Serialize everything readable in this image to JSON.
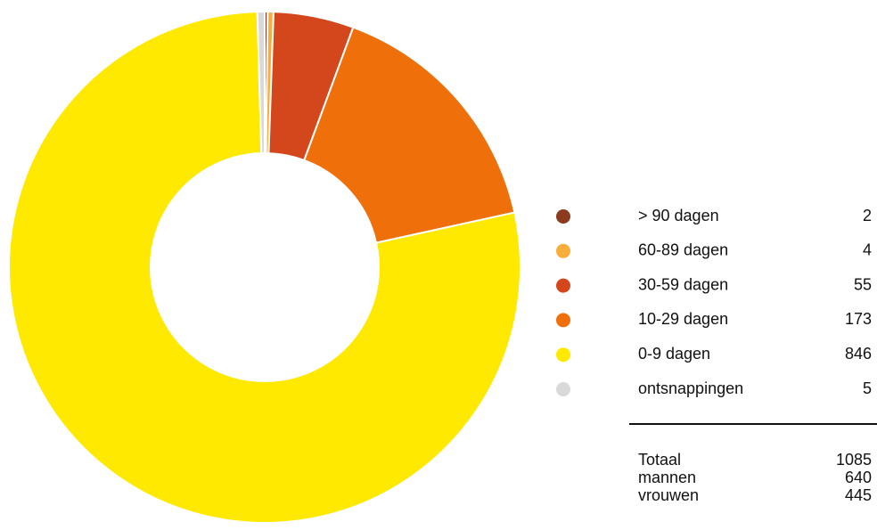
{
  "chart_data": {
    "type": "donut",
    "categories": [
      "> 90 dagen",
      "60-89 dagen",
      "30-59 dagen",
      "10-29 dagen",
      "0-9 dagen",
      "ontsnappingen"
    ],
    "values": [
      2,
      4,
      55,
      173,
      846,
      5
    ],
    "colors": [
      "#8c3b1e",
      "#f9ae3b",
      "#d4471d",
      "#ef6f0a",
      "#ffe900",
      "#d9d9d9"
    ],
    "summary": [
      {
        "label": "Totaal",
        "value": 1085
      },
      {
        "label": "mannen",
        "value": 640
      },
      {
        "label": "vrouwen",
        "value": 445
      }
    ]
  }
}
